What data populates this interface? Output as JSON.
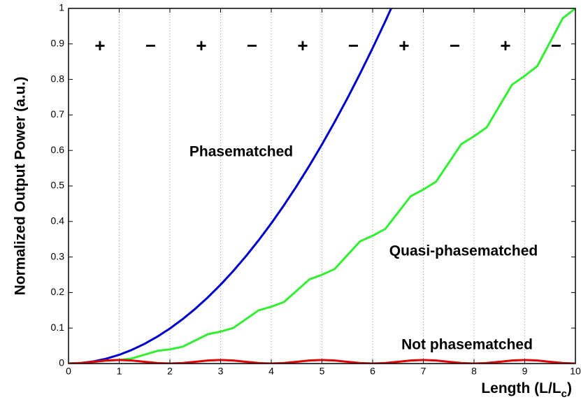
{
  "chart_data": {
    "type": "line",
    "x_label": [
      "Length (L/L",
      "c",
      ")"
    ],
    "y_label": "Normalized Output Power (a.u.)",
    "x": [
      0,
      0.25,
      0.5,
      0.75,
      1,
      1.25,
      1.5,
      1.75,
      2,
      2.25,
      2.5,
      2.75,
      3,
      3.25,
      3.5,
      3.75,
      4,
      4.25,
      4.5,
      4.75,
      5,
      5.25,
      5.5,
      5.75,
      6,
      6.25,
      6.5,
      6.75,
      7,
      7.25,
      7.5,
      7.75,
      8,
      8.25,
      8.5,
      8.75,
      9,
      9.25,
      9.5,
      9.75,
      10
    ],
    "series": [
      {
        "name": "Phasematched",
        "color": "#0000cc",
        "values": [
          0,
          0.00154,
          0.00617,
          0.01388,
          0.02467,
          0.03855,
          0.05552,
          0.07556,
          0.0987,
          0.12491,
          0.15421,
          0.1866,
          0.22207,
          0.26062,
          0.30226,
          0.34698,
          0.39478,
          0.44567,
          0.49965,
          0.55671,
          0.61685,
          0.68008,
          0.7464,
          0.81578,
          0.88826,
          0.96383,
          1.04248,
          null,
          null,
          null,
          null,
          null,
          null,
          null,
          null,
          null,
          null,
          null,
          null,
          null,
          null
        ]
      },
      {
        "name": "Quasi-phasematched",
        "color": "#33ee33",
        "values": [
          0,
          0.00146,
          0.005,
          0.00854,
          0.01,
          0.01439,
          0.025,
          0.03561,
          0.04,
          0.04732,
          0.065,
          0.08268,
          0.09,
          0.10025,
          0.125,
          0.14975,
          0.16,
          0.17318,
          0.205,
          0.23682,
          0.25,
          0.26611,
          0.305,
          0.34389,
          0.36,
          0.37904,
          0.425,
          0.47096,
          0.49,
          0.51197,
          0.565,
          0.61803,
          0.64,
          0.6649,
          0.725,
          0.7851,
          0.81,
          0.83783,
          0.905,
          0.97218,
          1
        ]
      },
      {
        "name": "Not phasematched",
        "color": "#e00000",
        "values": [
          0,
          0.00146,
          0.005,
          0.00854,
          0.01,
          0.00854,
          0.005,
          0.00146,
          0,
          0.00146,
          0.005,
          0.00854,
          0.01,
          0.00854,
          0.005,
          0.00146,
          0,
          0.00146,
          0.005,
          0.00854,
          0.01,
          0.00854,
          0.005,
          0.00146,
          0,
          0.00146,
          0.005,
          0.00854,
          0.01,
          0.00854,
          0.005,
          0.00146,
          0,
          0.00146,
          0.005,
          0.00854,
          0.01,
          0.00854,
          0.005,
          0.00146,
          0
        ]
      }
    ],
    "signs": [
      "+",
      "−",
      "+",
      "−",
      "+",
      "−",
      "+",
      "−",
      "+",
      "−"
    ],
    "xlim": [
      0,
      10
    ],
    "ylim": [
      0,
      1
    ],
    "xticks": [
      0,
      1,
      2,
      3,
      4,
      5,
      6,
      7,
      8,
      9,
      10
    ],
    "yticks": [
      0,
      0.1,
      0.2,
      0.3,
      0.4,
      0.5,
      0.6,
      0.7,
      0.8,
      0.9,
      1
    ],
    "grid": "x"
  }
}
